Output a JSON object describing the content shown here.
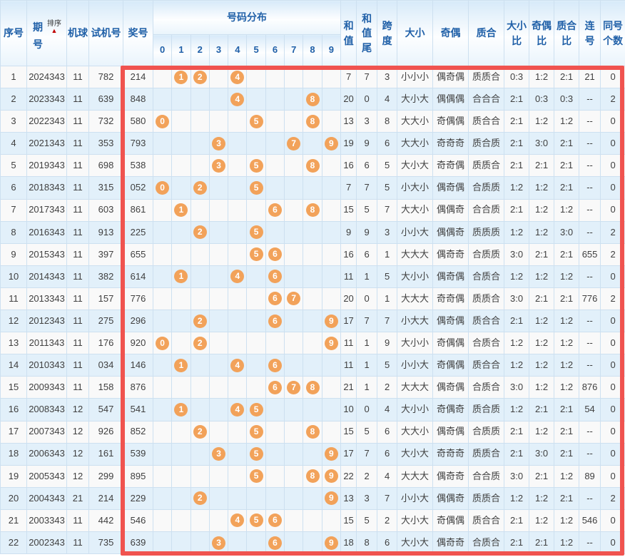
{
  "header": {
    "seq": "序号",
    "period": "期号",
    "sort_label": "排序",
    "sort_arrow": "▲",
    "machine": "机球",
    "test_number": "试机号",
    "prize_number": "奖号",
    "distribution": "号码分布",
    "sum": "和值",
    "sum_tail": "和值尾",
    "span": "跨度",
    "size": "大小",
    "parity": "奇偶",
    "prime": "质合",
    "size_ratio": "大小比",
    "parity_ratio": "奇偶比",
    "prime_ratio": "质合比",
    "consecutive": "连号",
    "same_count": "同号个数"
  },
  "digit_columns": [
    "0",
    "1",
    "2",
    "3",
    "4",
    "5",
    "6",
    "7",
    "8",
    "9"
  ],
  "rows": [
    {
      "seq": "1",
      "period": "2024343",
      "machine": "11",
      "test_number": "782",
      "prize_number": "214",
      "digits": [
        "1",
        "2",
        "4"
      ],
      "sum": "7",
      "sum_tail": "7",
      "span": "3",
      "size": "小小小",
      "parity": "偶奇偶",
      "prime": "质质合",
      "size_ratio": "0:3",
      "parity_ratio": "1:2",
      "prime_ratio": "2:1",
      "consecutive": "21",
      "same_count": "0"
    },
    {
      "seq": "2",
      "period": "2023343",
      "machine": "11",
      "test_number": "639",
      "prize_number": "848",
      "digits": [
        "4",
        "8"
      ],
      "sum": "20",
      "sum_tail": "0",
      "span": "4",
      "size": "大小大",
      "parity": "偶偶偶",
      "prime": "合合合",
      "size_ratio": "2:1",
      "parity_ratio": "0:3",
      "prime_ratio": "0:3",
      "consecutive": "--",
      "same_count": "2"
    },
    {
      "seq": "3",
      "period": "2022343",
      "machine": "11",
      "test_number": "732",
      "prize_number": "580",
      "digits": [
        "0",
        "5",
        "8"
      ],
      "sum": "13",
      "sum_tail": "3",
      "span": "8",
      "size": "大大小",
      "parity": "奇偶偶",
      "prime": "质合合",
      "size_ratio": "2:1",
      "parity_ratio": "1:2",
      "prime_ratio": "1:2",
      "consecutive": "--",
      "same_count": "0"
    },
    {
      "seq": "4",
      "period": "2021343",
      "machine": "11",
      "test_number": "353",
      "prize_number": "793",
      "digits": [
        "3",
        "7",
        "9"
      ],
      "sum": "19",
      "sum_tail": "9",
      "span": "6",
      "size": "大大小",
      "parity": "奇奇奇",
      "prime": "质合质",
      "size_ratio": "2:1",
      "parity_ratio": "3:0",
      "prime_ratio": "2:1",
      "consecutive": "--",
      "same_count": "0"
    },
    {
      "seq": "5",
      "period": "2019343",
      "machine": "11",
      "test_number": "698",
      "prize_number": "538",
      "digits": [
        "3",
        "5",
        "8"
      ],
      "sum": "16",
      "sum_tail": "6",
      "span": "5",
      "size": "大小大",
      "parity": "奇奇偶",
      "prime": "质质合",
      "size_ratio": "2:1",
      "parity_ratio": "2:1",
      "prime_ratio": "2:1",
      "consecutive": "--",
      "same_count": "0"
    },
    {
      "seq": "6",
      "period": "2018343",
      "machine": "11",
      "test_number": "315",
      "prize_number": "052",
      "digits": [
        "0",
        "2",
        "5"
      ],
      "sum": "7",
      "sum_tail": "7",
      "span": "5",
      "size": "小大小",
      "parity": "偶奇偶",
      "prime": "合质质",
      "size_ratio": "1:2",
      "parity_ratio": "1:2",
      "prime_ratio": "2:1",
      "consecutive": "--",
      "same_count": "0"
    },
    {
      "seq": "7",
      "period": "2017343",
      "machine": "11",
      "test_number": "603",
      "prize_number": "861",
      "digits": [
        "1",
        "6",
        "8"
      ],
      "sum": "15",
      "sum_tail": "5",
      "span": "7",
      "size": "大大小",
      "parity": "偶偶奇",
      "prime": "合合质",
      "size_ratio": "2:1",
      "parity_ratio": "1:2",
      "prime_ratio": "1:2",
      "consecutive": "--",
      "same_count": "0"
    },
    {
      "seq": "8",
      "period": "2016343",
      "machine": "11",
      "test_number": "913",
      "prize_number": "225",
      "digits": [
        "2",
        "5"
      ],
      "sum": "9",
      "sum_tail": "9",
      "span": "3",
      "size": "小小大",
      "parity": "偶偶奇",
      "prime": "质质质",
      "size_ratio": "1:2",
      "parity_ratio": "1:2",
      "prime_ratio": "3:0",
      "consecutive": "--",
      "same_count": "2"
    },
    {
      "seq": "9",
      "period": "2015343",
      "machine": "11",
      "test_number": "397",
      "prize_number": "655",
      "digits": [
        "5",
        "6"
      ],
      "sum": "16",
      "sum_tail": "6",
      "span": "1",
      "size": "大大大",
      "parity": "偶奇奇",
      "prime": "合质质",
      "size_ratio": "3:0",
      "parity_ratio": "2:1",
      "prime_ratio": "2:1",
      "consecutive": "655",
      "same_count": "2"
    },
    {
      "seq": "10",
      "period": "2014343",
      "machine": "11",
      "test_number": "382",
      "prize_number": "614",
      "digits": [
        "1",
        "4",
        "6"
      ],
      "sum": "11",
      "sum_tail": "1",
      "span": "5",
      "size": "大小小",
      "parity": "偶奇偶",
      "prime": "合质合",
      "size_ratio": "1:2",
      "parity_ratio": "1:2",
      "prime_ratio": "1:2",
      "consecutive": "--",
      "same_count": "0"
    },
    {
      "seq": "11",
      "period": "2013343",
      "machine": "11",
      "test_number": "157",
      "prize_number": "776",
      "digits": [
        "6",
        "7"
      ],
      "sum": "20",
      "sum_tail": "0",
      "span": "1",
      "size": "大大大",
      "parity": "奇奇偶",
      "prime": "质质合",
      "size_ratio": "3:0",
      "parity_ratio": "2:1",
      "prime_ratio": "2:1",
      "consecutive": "776",
      "same_count": "2"
    },
    {
      "seq": "12",
      "period": "2012343",
      "machine": "11",
      "test_number": "275",
      "prize_number": "296",
      "digits": [
        "2",
        "6",
        "9"
      ],
      "sum": "17",
      "sum_tail": "7",
      "span": "7",
      "size": "小大大",
      "parity": "偶奇偶",
      "prime": "质合合",
      "size_ratio": "2:1",
      "parity_ratio": "1:2",
      "prime_ratio": "1:2",
      "consecutive": "--",
      "same_count": "0"
    },
    {
      "seq": "13",
      "period": "2011343",
      "machine": "11",
      "test_number": "176",
      "prize_number": "920",
      "digits": [
        "0",
        "2",
        "9"
      ],
      "sum": "11",
      "sum_tail": "1",
      "span": "9",
      "size": "大小小",
      "parity": "奇偶偶",
      "prime": "合质合",
      "size_ratio": "1:2",
      "parity_ratio": "1:2",
      "prime_ratio": "1:2",
      "consecutive": "--",
      "same_count": "0"
    },
    {
      "seq": "14",
      "period": "2010343",
      "machine": "11",
      "test_number": "034",
      "prize_number": "146",
      "digits": [
        "1",
        "4",
        "6"
      ],
      "sum": "11",
      "sum_tail": "1",
      "span": "5",
      "size": "小小大",
      "parity": "奇偶偶",
      "prime": "质合合",
      "size_ratio": "1:2",
      "parity_ratio": "1:2",
      "prime_ratio": "1:2",
      "consecutive": "--",
      "same_count": "0"
    },
    {
      "seq": "15",
      "period": "2009343",
      "machine": "11",
      "test_number": "158",
      "prize_number": "876",
      "digits": [
        "6",
        "7",
        "8"
      ],
      "sum": "21",
      "sum_tail": "1",
      "span": "2",
      "size": "大大大",
      "parity": "偶奇偶",
      "prime": "合质合",
      "size_ratio": "3:0",
      "parity_ratio": "1:2",
      "prime_ratio": "1:2",
      "consecutive": "876",
      "same_count": "0"
    },
    {
      "seq": "16",
      "period": "2008343",
      "machine": "12",
      "test_number": "547",
      "prize_number": "541",
      "digits": [
        "1",
        "4",
        "5"
      ],
      "sum": "10",
      "sum_tail": "0",
      "span": "4",
      "size": "大小小",
      "parity": "奇偶奇",
      "prime": "质合质",
      "size_ratio": "1:2",
      "parity_ratio": "2:1",
      "prime_ratio": "2:1",
      "consecutive": "54",
      "same_count": "0"
    },
    {
      "seq": "17",
      "period": "2007343",
      "machine": "12",
      "test_number": "926",
      "prize_number": "852",
      "digits": [
        "2",
        "5",
        "8"
      ],
      "sum": "15",
      "sum_tail": "5",
      "span": "6",
      "size": "大大小",
      "parity": "偶奇偶",
      "prime": "合质质",
      "size_ratio": "2:1",
      "parity_ratio": "1:2",
      "prime_ratio": "2:1",
      "consecutive": "--",
      "same_count": "0"
    },
    {
      "seq": "18",
      "period": "2006343",
      "machine": "12",
      "test_number": "161",
      "prize_number": "539",
      "digits": [
        "3",
        "5",
        "9"
      ],
      "sum": "17",
      "sum_tail": "7",
      "span": "6",
      "size": "大小大",
      "parity": "奇奇奇",
      "prime": "质质合",
      "size_ratio": "2:1",
      "parity_ratio": "3:0",
      "prime_ratio": "2:1",
      "consecutive": "--",
      "same_count": "0"
    },
    {
      "seq": "19",
      "period": "2005343",
      "machine": "12",
      "test_number": "299",
      "prize_number": "895",
      "digits": [
        "5",
        "8",
        "9"
      ],
      "sum": "22",
      "sum_tail": "2",
      "span": "4",
      "size": "大大大",
      "parity": "偶奇奇",
      "prime": "合合质",
      "size_ratio": "3:0",
      "parity_ratio": "2:1",
      "prime_ratio": "1:2",
      "consecutive": "89",
      "same_count": "0"
    },
    {
      "seq": "20",
      "period": "2004343",
      "machine": "21",
      "test_number": "214",
      "prize_number": "229",
      "digits": [
        "2",
        "9"
      ],
      "sum": "13",
      "sum_tail": "3",
      "span": "7",
      "size": "小小大",
      "parity": "偶偶奇",
      "prime": "质质合",
      "size_ratio": "1:2",
      "parity_ratio": "1:2",
      "prime_ratio": "2:1",
      "consecutive": "--",
      "same_count": "2"
    },
    {
      "seq": "21",
      "period": "2003343",
      "machine": "11",
      "test_number": "442",
      "prize_number": "546",
      "digits": [
        "4",
        "5",
        "6"
      ],
      "sum": "15",
      "sum_tail": "5",
      "span": "2",
      "size": "大小大",
      "parity": "奇偶偶",
      "prime": "质合合",
      "size_ratio": "2:1",
      "parity_ratio": "1:2",
      "prime_ratio": "1:2",
      "consecutive": "546",
      "same_count": "0"
    },
    {
      "seq": "22",
      "period": "2002343",
      "machine": "11",
      "test_number": "735",
      "prize_number": "639",
      "digits": [
        "3",
        "6",
        "9"
      ],
      "sum": "18",
      "sum_tail": "8",
      "span": "6",
      "size": "大小大",
      "parity": "偶奇奇",
      "prime": "合质合",
      "size_ratio": "2:1",
      "parity_ratio": "2:1",
      "prime_ratio": "1:2",
      "consecutive": "--",
      "same_count": "0"
    }
  ],
  "colors": {
    "highlight_red": "#f0534f",
    "circle_orange": "#f2a25a",
    "header_blue": "#2060a8",
    "row_even_blue": "#e2f0fa",
    "distribution_yellow": "#fdf9e2",
    "grid_line": "#cde0f0"
  }
}
